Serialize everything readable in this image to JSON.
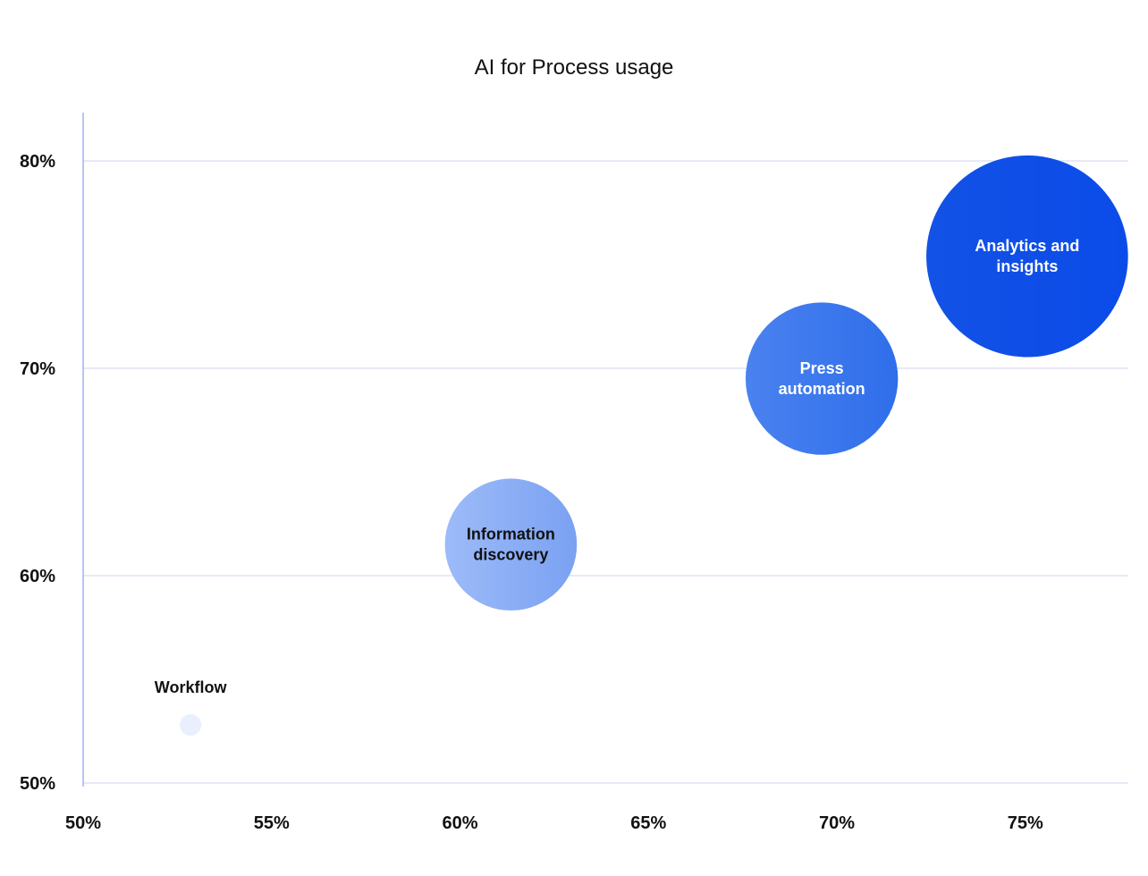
{
  "chart_data": {
    "type": "bubble",
    "title": "AI for Process usage",
    "xlabel": "",
    "ylabel": "",
    "xlim": [
      50,
      77.8
    ],
    "ylim": [
      50,
      82.3
    ],
    "x_ticks": [
      "50%",
      "55%",
      "60%",
      "65%",
      "70%",
      "75%"
    ],
    "x_tick_values": [
      50,
      55,
      60,
      65,
      70,
      75
    ],
    "y_ticks": [
      "50%",
      "60%",
      "70%",
      "80%"
    ],
    "y_tick_values": [
      50,
      60,
      70,
      80
    ],
    "grid": "horizontal",
    "points": [
      {
        "label": "Workflow",
        "label_lines": [
          "Workflow"
        ],
        "x": 52.85,
        "y": 52.8,
        "size": 1,
        "label_position": "above",
        "color_start": "#e9effd",
        "color_end": "#e9effd",
        "label_color": "#111111"
      },
      {
        "label": "Information discovery",
        "label_lines": [
          "Information",
          "discovery"
        ],
        "x": 61.35,
        "y": 61.5,
        "size": 11.3,
        "label_position": "center",
        "color_start": "#9dbbf8",
        "color_end": "#7aa1f2",
        "label_color": "#111111"
      },
      {
        "label": "Press automation",
        "label_lines": [
          "Press",
          "automation"
        ],
        "x": 69.6,
        "y": 69.5,
        "size": 13.2,
        "label_position": "center",
        "color_start": "#4a82ef",
        "color_end": "#2f6eeb",
        "label_color": "#ffffff"
      },
      {
        "label": "Analytics and insights",
        "label_lines": [
          "Analytics and",
          "insights"
        ],
        "x": 75.05,
        "y": 75.4,
        "size": 17.8,
        "label_position": "center",
        "color_start": "#1352e6",
        "color_end": "#0b4be8",
        "label_color": "#ffffff"
      }
    ]
  }
}
